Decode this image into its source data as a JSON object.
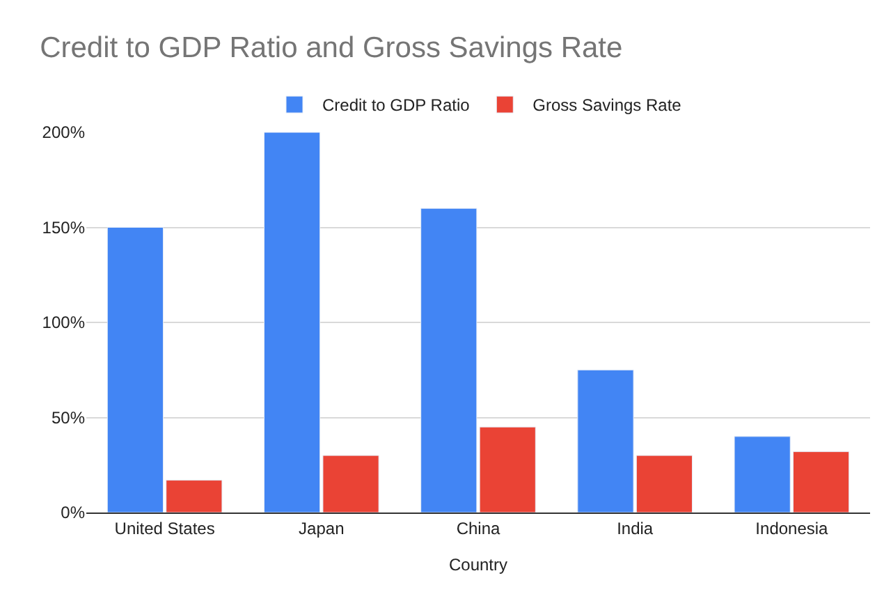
{
  "chart_data": {
    "type": "bar",
    "title": "Credit to GDP Ratio and Gross Savings Rate",
    "xlabel": "Country",
    "categories": [
      "United States",
      "Japan",
      "China",
      "India",
      "Indonesia"
    ],
    "series": [
      {
        "name": "Credit to GDP Ratio",
        "color": "#4285f4",
        "values": [
          150,
          200,
          160,
          75,
          40
        ]
      },
      {
        "name": "Gross Savings Rate",
        "color": "#ea4335",
        "values": [
          17,
          30,
          45,
          30,
          32
        ]
      }
    ],
    "ylim": [
      0,
      200
    ],
    "yticks": [
      {
        "value": 0,
        "label": "0%"
      },
      {
        "value": 50,
        "label": "50%"
      },
      {
        "value": 100,
        "label": "100%"
      },
      {
        "value": 150,
        "label": "150%"
      },
      {
        "value": 200,
        "label": "200%"
      }
    ],
    "grid": "y",
    "legend": "top"
  }
}
